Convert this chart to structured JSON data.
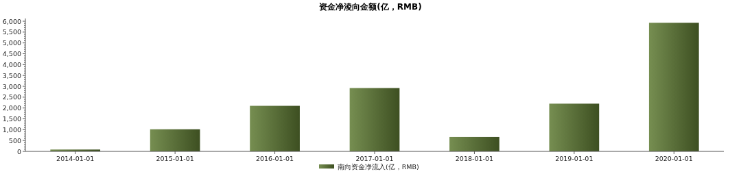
{
  "chart_data": {
    "type": "bar",
    "title": "资金净淩向金额(亿，RMB)",
    "categories": [
      "2014-01-01",
      "2015-01-01",
      "2016-01-01",
      "2017-01-01",
      "2018-01-01",
      "2019-01-01",
      "2020-01-01"
    ],
    "series": [
      {
        "name": "南向资金净流入(亿，RMB)",
        "color": "#5e7a32",
        "values": [
          85,
          1020,
          2100,
          2920,
          665,
          2200,
          5930
        ]
      }
    ],
    "ylim": [
      0,
      6000
    ],
    "yticks": [
      {
        "value": 0,
        "label": "0"
      },
      {
        "value": 500,
        "label": "500"
      },
      {
        "value": 1000,
        "label": "1,000"
      },
      {
        "value": 1500,
        "label": "1,500"
      },
      {
        "value": 2000,
        "label": "2,000"
      },
      {
        "value": 2500,
        "label": "2,500"
      },
      {
        "value": 3000,
        "label": "3,000"
      },
      {
        "value": 3500,
        "label": "3,500"
      },
      {
        "value": 4000,
        "label": "4,000"
      },
      {
        "value": 4500,
        "label": "4,500"
      },
      {
        "value": 5000,
        "label": "5,000"
      },
      {
        "value": 5500,
        "label": "5,500"
      },
      {
        "value": 6000,
        "label": "6,000"
      }
    ],
    "grid": false,
    "legend": "bottom"
  }
}
